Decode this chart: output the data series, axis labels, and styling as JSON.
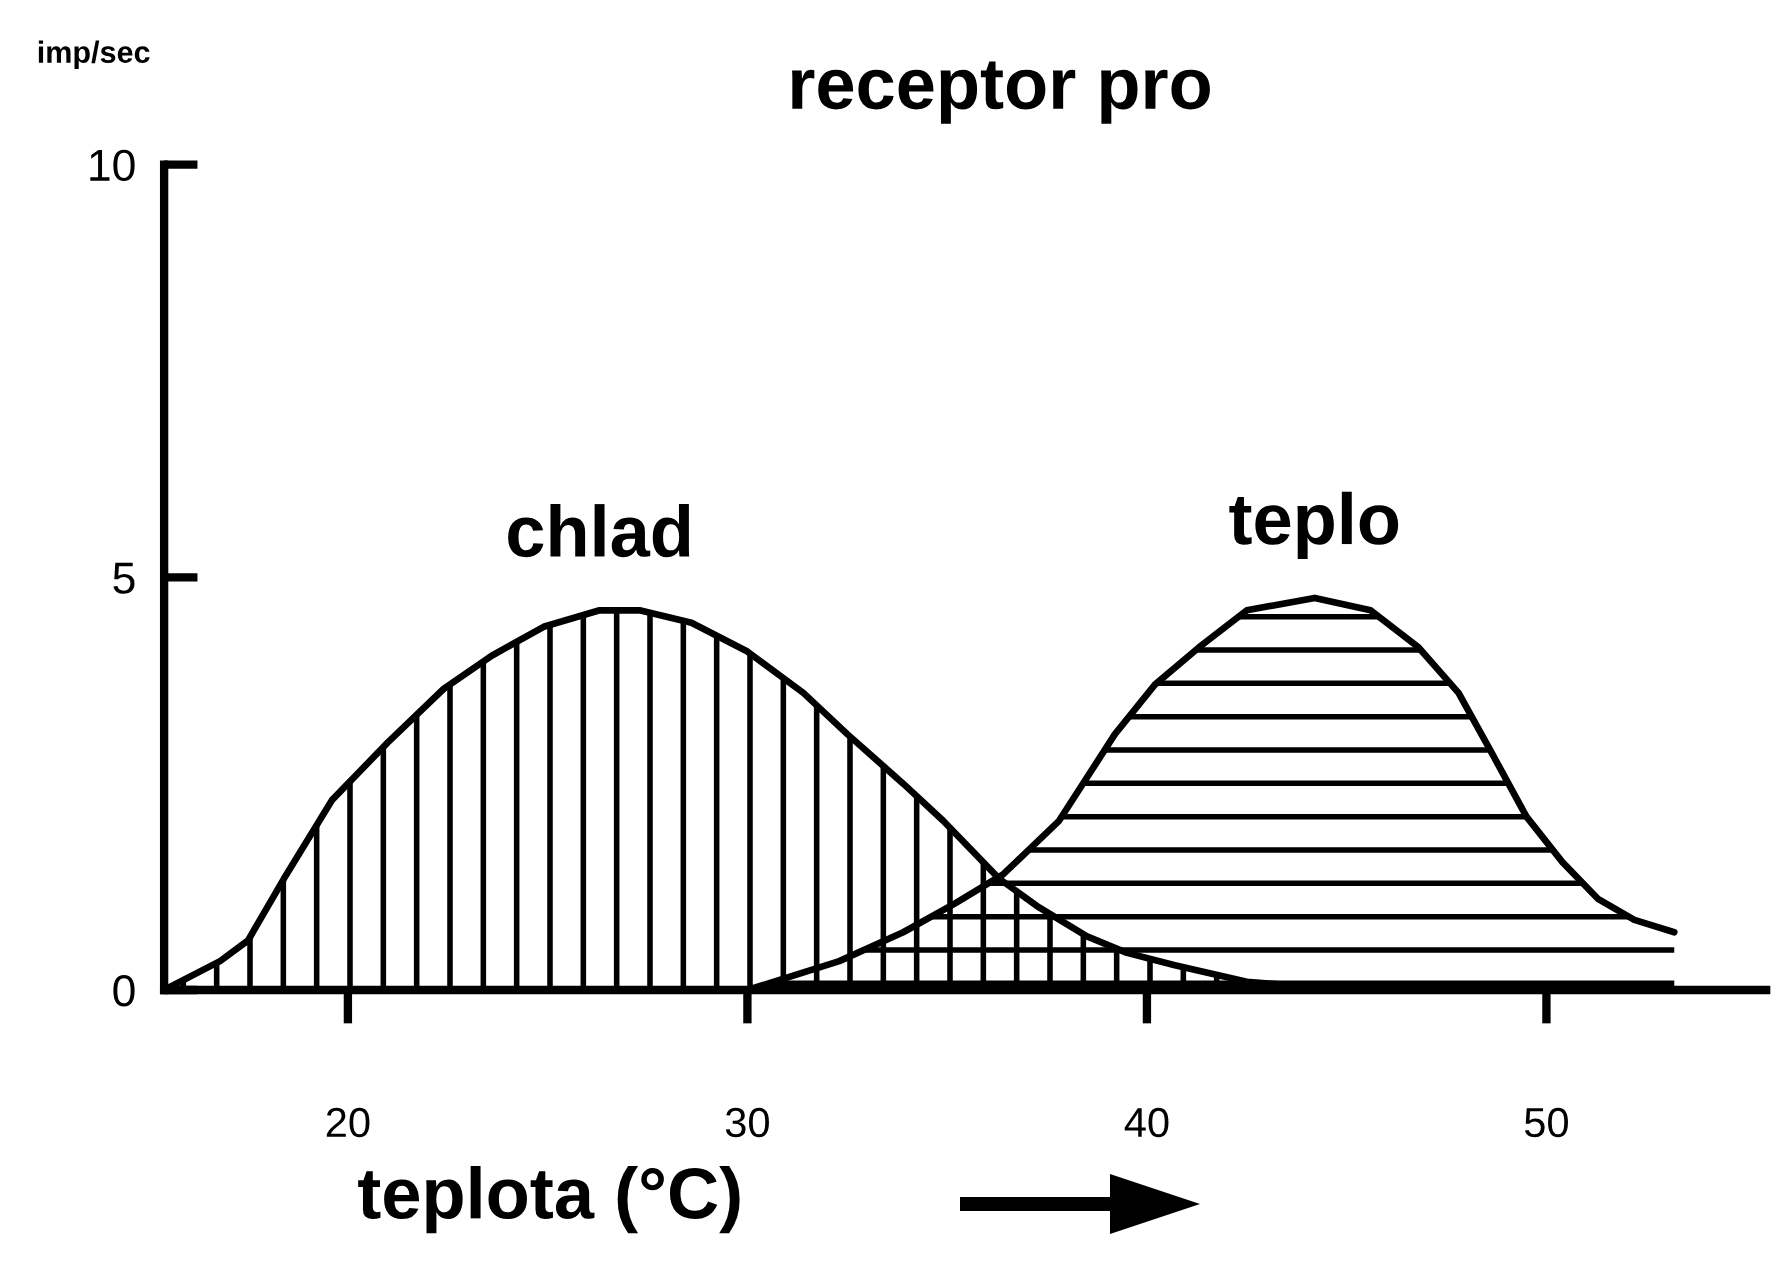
{
  "chart_data": {
    "type": "area",
    "title": "receptor pro",
    "xlabel": "teplota (°C)",
    "ylabel": "imp/sec",
    "xlim": [
      15.4,
      55.5
    ],
    "xticks": [
      20,
      30,
      40,
      50
    ],
    "ylim": [
      0,
      10
    ],
    "yticks": [
      0,
      5,
      10
    ],
    "series": [
      {
        "name": "chlad",
        "color": "#000000",
        "x": [
          15.4,
          16.8,
          17.5,
          18.4,
          19.6,
          21.0,
          22.4,
          23.6,
          24.9,
          26.3,
          27.3,
          28.6,
          30.0,
          31.4,
          32.5,
          33.9,
          34.9,
          36.3,
          37.3,
          38.5,
          39.5,
          40.7,
          42.5,
          45.0
        ],
        "values": [
          0,
          0.35,
          0.6,
          1.35,
          2.3,
          3.0,
          3.65,
          4.05,
          4.4,
          4.6,
          4.6,
          4.45,
          4.1,
          3.6,
          3.1,
          2.5,
          2.05,
          1.35,
          1.0,
          0.65,
          0.45,
          0.3,
          0.1,
          0
        ]
      },
      {
        "name": "teplo",
        "color": "#000000",
        "x": [
          30.0,
          32.3,
          33.9,
          35.2,
          36.4,
          37.8,
          39.2,
          40.2,
          41.3,
          42.5,
          44.2,
          45.6,
          46.8,
          47.8,
          48.6,
          49.5,
          50.4,
          51.3,
          52.2,
          53.2
        ],
        "values": [
          0,
          0.35,
          0.7,
          1.05,
          1.4,
          2.05,
          3.1,
          3.7,
          4.15,
          4.6,
          4.75,
          4.6,
          4.15,
          3.6,
          2.9,
          2.1,
          1.55,
          1.1,
          0.85,
          0.7
        ]
      }
    ]
  }
}
